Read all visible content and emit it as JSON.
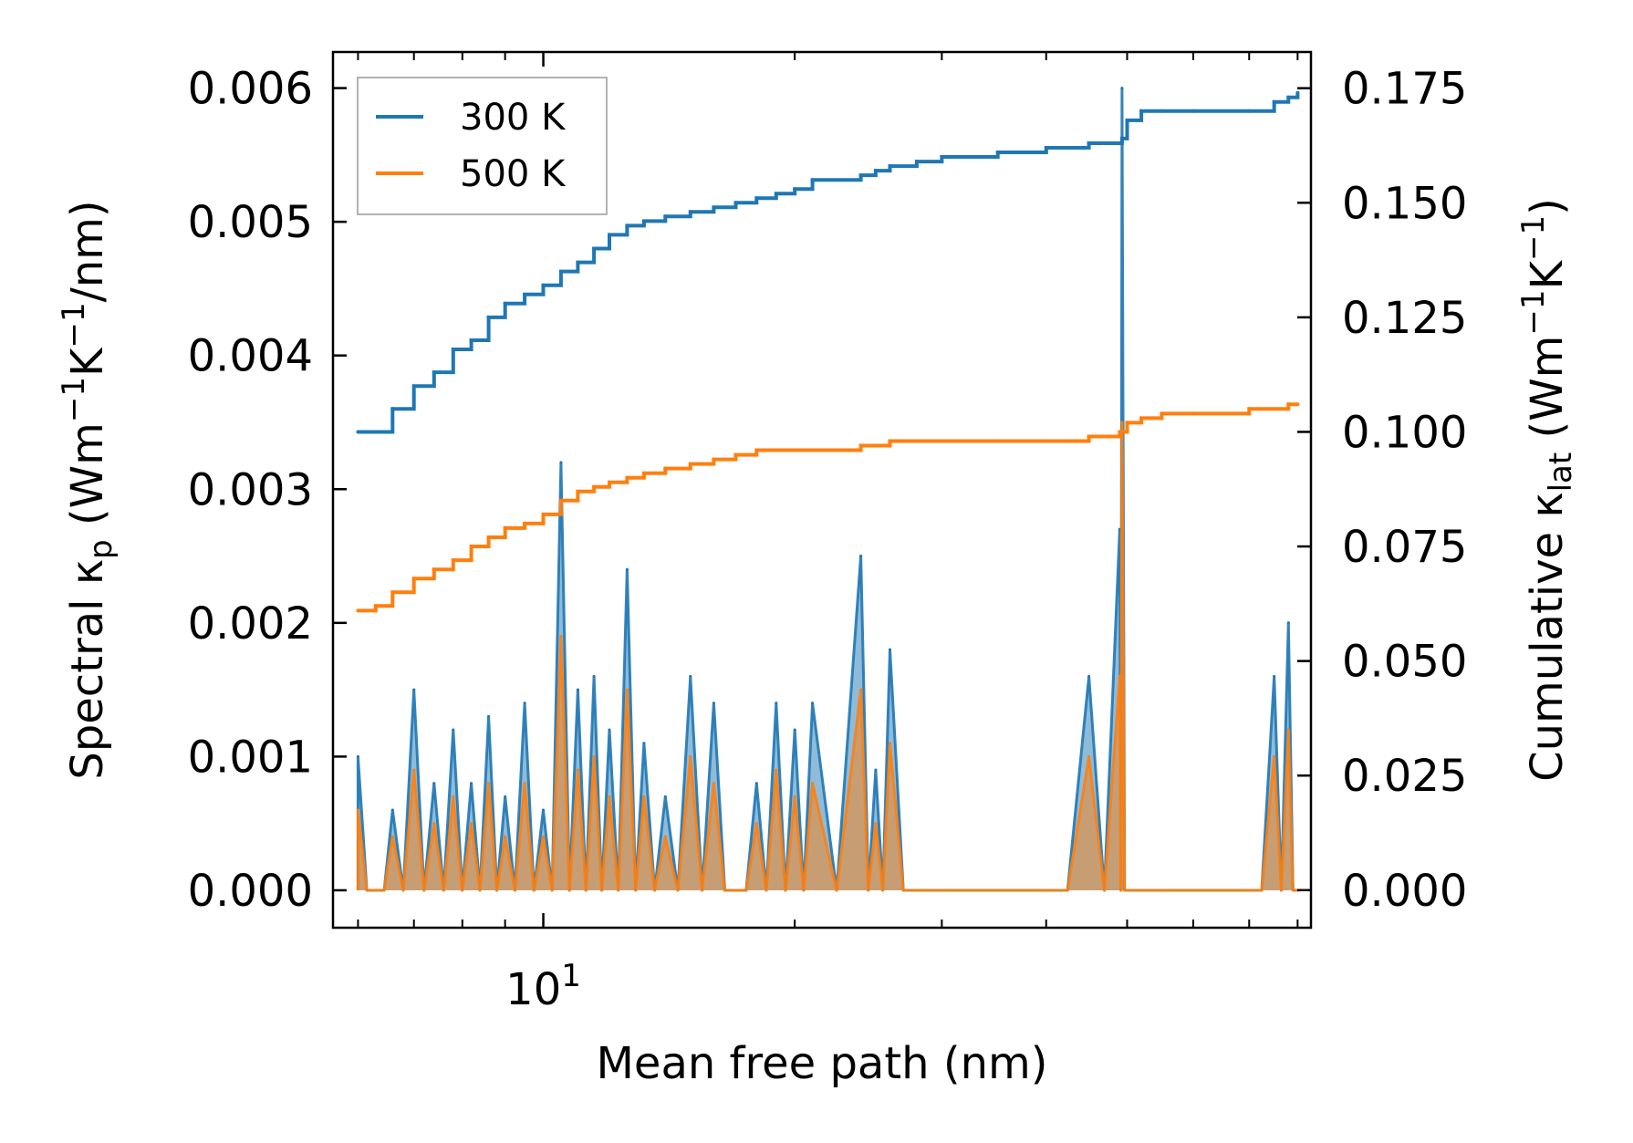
{
  "chart_data": {
    "type": "line",
    "title": "",
    "xlabel": "Mean free path (nm)",
    "ylabel_left_parts": [
      "Spectral κ",
      "p",
      " (Wm",
      "−1",
      "K",
      "−1",
      "/nm)"
    ],
    "ylabel_right_parts": [
      "Cumulative κ",
      "lat",
      " (Wm",
      "−1",
      "K",
      "−1",
      ")"
    ],
    "xscale": "log",
    "xlim": [
      5.6,
      83
    ],
    "ylim_left": [
      -0.00028,
      0.00627
    ],
    "ylim_right": [
      -0.0082,
      0.1829
    ],
    "x_tick_labels": [
      {
        "base": "10",
        "exp": "1",
        "value": 10
      }
    ],
    "x_minor_ticks": [
      6,
      7,
      8,
      9,
      20,
      30,
      40,
      50,
      60,
      70,
      80
    ],
    "yticks_left": [
      0.0,
      0.001,
      0.002,
      0.003,
      0.004,
      0.005,
      0.006
    ],
    "yticks_left_labels": [
      "0.000",
      "0.001",
      "0.002",
      "0.003",
      "0.004",
      "0.005",
      "0.006"
    ],
    "yticks_right": [
      0.0,
      0.025,
      0.05,
      0.075,
      0.1,
      0.125,
      0.15,
      0.175
    ],
    "yticks_right_labels": [
      "0.000",
      "0.025",
      "0.050",
      "0.075",
      "0.100",
      "0.125",
      "0.150",
      "0.175"
    ],
    "legend": {
      "position": "top-left",
      "entries": [
        "300 K",
        "500 K"
      ]
    },
    "colors": {
      "300 K": "#1f77b4",
      "500 K": "#ff7f0e",
      "frame": "#000000"
    },
    "series": [
      {
        "name": "300 K",
        "axis": "right",
        "kind": "cumulative",
        "x": [
          6.0,
          6.3,
          6.6,
          7.0,
          7.4,
          7.8,
          8.2,
          8.6,
          9.0,
          9.5,
          10.0,
          10.5,
          11.0,
          11.5,
          12.0,
          12.6,
          13.2,
          14.0,
          15.0,
          16.0,
          17.0,
          18.0,
          19.0,
          20.0,
          21.0,
          24.0,
          25.0,
          26.0,
          28.0,
          30.0,
          35.0,
          40.0,
          45.0,
          49.0,
          49.3,
          50.0,
          52.0,
          55.0,
          60.0,
          70.0,
          75.0,
          78.0,
          80.0
        ],
        "y": [
          0.1,
          0.1,
          0.105,
          0.11,
          0.113,
          0.118,
          0.12,
          0.125,
          0.128,
          0.13,
          0.132,
          0.135,
          0.137,
          0.14,
          0.143,
          0.145,
          0.146,
          0.147,
          0.148,
          0.149,
          0.15,
          0.151,
          0.152,
          0.153,
          0.155,
          0.156,
          0.157,
          0.158,
          0.159,
          0.16,
          0.161,
          0.162,
          0.163,
          0.163,
          0.164,
          0.168,
          0.17,
          0.17,
          0.17,
          0.17,
          0.172,
          0.173,
          0.174
        ]
      },
      {
        "name": "500 K",
        "axis": "right",
        "kind": "cumulative",
        "x": [
          6.0,
          6.3,
          6.6,
          7.0,
          7.4,
          7.8,
          8.2,
          8.6,
          9.0,
          9.5,
          10.0,
          10.5,
          11.0,
          11.5,
          12.0,
          12.6,
          13.2,
          14.0,
          15.0,
          16.0,
          17.0,
          18.0,
          19.0,
          20.0,
          21.0,
          24.0,
          25.0,
          26.0,
          28.0,
          30.0,
          35.0,
          40.0,
          45.0,
          49.0,
          49.3,
          50.0,
          52.0,
          55.0,
          60.0,
          70.0,
          75.0,
          78.0,
          80.0
        ],
        "y": [
          0.061,
          0.062,
          0.065,
          0.068,
          0.07,
          0.072,
          0.075,
          0.077,
          0.079,
          0.08,
          0.082,
          0.085,
          0.087,
          0.088,
          0.089,
          0.09,
          0.091,
          0.092,
          0.093,
          0.094,
          0.095,
          0.096,
          0.096,
          0.096,
          0.096,
          0.097,
          0.097,
          0.098,
          0.098,
          0.098,
          0.098,
          0.098,
          0.099,
          0.1,
          0.1,
          0.102,
          0.103,
          0.104,
          0.104,
          0.105,
          0.105,
          0.106,
          0.106
        ]
      },
      {
        "name": "300 K",
        "axis": "left",
        "kind": "spectral",
        "x": [
          6.0,
          6.3,
          6.6,
          7.0,
          7.4,
          7.8,
          8.2,
          8.6,
          9.0,
          9.5,
          10.0,
          10.5,
          11.0,
          11.5,
          12.0,
          12.6,
          13.2,
          14.0,
          15.0,
          16.0,
          17.0,
          18.0,
          19.0,
          20.0,
          21.0,
          24.0,
          25.0,
          26.0,
          28.0,
          30.0,
          35.0,
          40.0,
          45.0,
          49.0,
          49.3,
          50.0,
          52.0,
          55.0,
          60.0,
          70.0,
          75.0,
          78.0,
          80.0
        ],
        "y": [
          0.001,
          0.0,
          0.0006,
          0.0015,
          0.0008,
          0.0012,
          0.0008,
          0.0013,
          0.0007,
          0.0014,
          0.0006,
          0.0032,
          0.0015,
          0.0016,
          0.0012,
          0.0024,
          0.0011,
          0.0007,
          0.0016,
          0.0014,
          0.0,
          0.0008,
          0.0014,
          0.0012,
          0.0014,
          0.0025,
          0.0009,
          0.0018,
          0.0,
          0.0,
          0.0,
          0.0,
          0.0016,
          0.0027,
          0.006,
          0.0,
          0.0,
          0.0,
          0.0,
          0.0,
          0.0016,
          0.002,
          0.0
        ]
      },
      {
        "name": "500 K",
        "axis": "left",
        "kind": "spectral",
        "x": [
          6.0,
          6.3,
          6.6,
          7.0,
          7.4,
          7.8,
          8.2,
          8.6,
          9.0,
          9.5,
          10.0,
          10.5,
          11.0,
          11.5,
          12.0,
          12.6,
          13.2,
          14.0,
          15.0,
          16.0,
          17.0,
          18.0,
          19.0,
          20.0,
          21.0,
          24.0,
          25.0,
          26.0,
          28.0,
          30.0,
          35.0,
          40.0,
          45.0,
          49.0,
          49.3,
          50.0,
          52.0,
          55.0,
          60.0,
          70.0,
          75.0,
          78.0,
          80.0
        ],
        "y": [
          0.0006,
          0.0,
          0.0004,
          0.0009,
          0.0005,
          0.0007,
          0.0005,
          0.0008,
          0.0004,
          0.0008,
          0.0004,
          0.0019,
          0.0009,
          0.001,
          0.0007,
          0.0015,
          0.0007,
          0.0004,
          0.001,
          0.0008,
          0.0,
          0.0005,
          0.0009,
          0.0007,
          0.0008,
          0.0015,
          0.0005,
          0.0011,
          0.0,
          0.0,
          0.0,
          0.0,
          0.001,
          0.0016,
          0.0035,
          0.0,
          0.0,
          0.0,
          0.0,
          0.0,
          0.001,
          0.0012,
          0.0
        ]
      }
    ]
  }
}
